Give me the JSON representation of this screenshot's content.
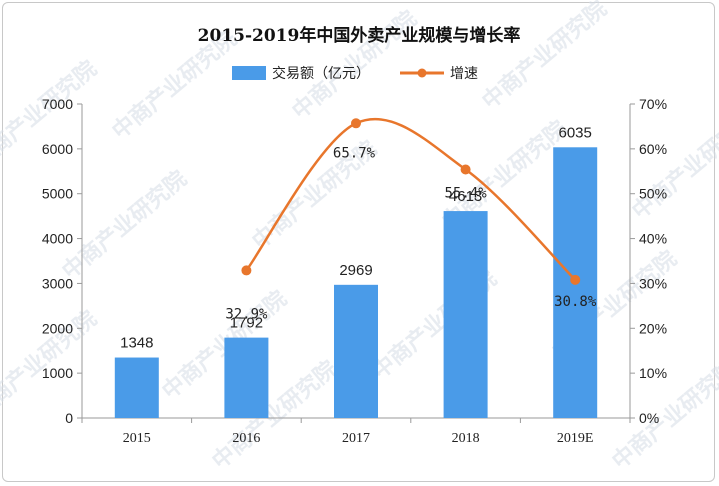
{
  "chart_data": {
    "type": "bar",
    "title": "2015-2019年中国外卖产业规模与增长率",
    "categories": [
      "2015",
      "2016",
      "2017",
      "2018",
      "2019E"
    ],
    "series": [
      {
        "name": "交易额（亿元）",
        "kind": "bar",
        "axis": "left",
        "color": "#4a9be8",
        "values": [
          1348,
          1792,
          2969,
          4613,
          6035
        ],
        "labels": [
          "1348",
          "1792",
          "2969",
          "4613",
          "6035"
        ]
      },
      {
        "name": "增速",
        "kind": "line",
        "axis": "right",
        "color": "#e8762c",
        "values": [
          null,
          32.9,
          65.7,
          55.4,
          30.8
        ],
        "labels": [
          "",
          "32.9%",
          "65.7%",
          "55.4%",
          "30.8%"
        ]
      }
    ],
    "ylim_left": [
      0,
      7000
    ],
    "yticks_left": [
      "0",
      "1000",
      "2000",
      "3000",
      "4000",
      "5000",
      "6000",
      "7000"
    ],
    "ylim_right": [
      0,
      70
    ],
    "yticks_right": [
      "0%",
      "10%",
      "20%",
      "30%",
      "40%",
      "50%",
      "60%",
      "70%"
    ],
    "legend_position": "top-center",
    "grid": false,
    "watermark": "中商产业研究院"
  }
}
